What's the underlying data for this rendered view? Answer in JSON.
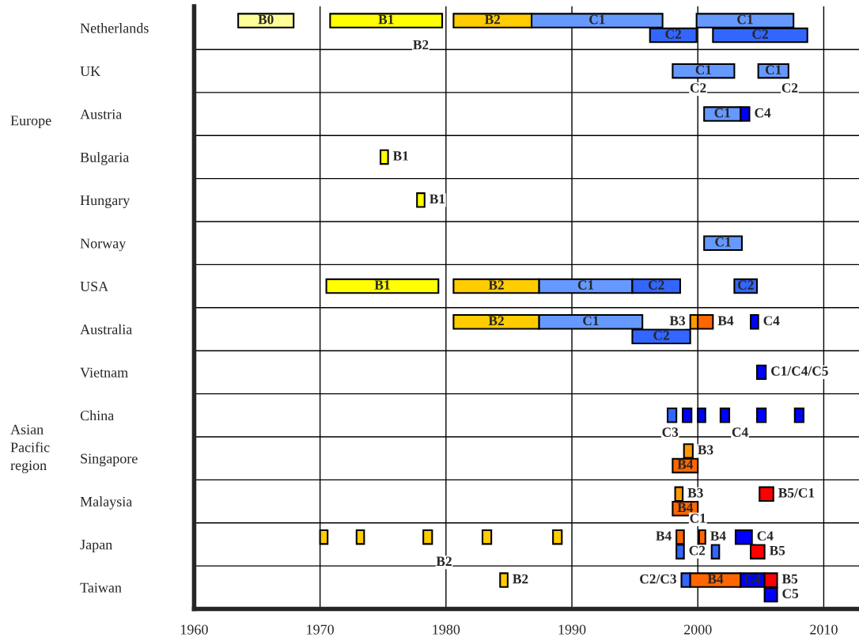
{
  "chart_data": {
    "type": "bar",
    "orientation": "horizontal",
    "categories": [
      "Netherlands",
      "UK",
      "Austria",
      "Bulgaria",
      "Hungary",
      "Norway",
      "USA",
      "Australia",
      "Vietnam",
      "China",
      "Singapore",
      "Malaysia",
      "Japan",
      "Taiwan"
    ],
    "xlim": [
      1960,
      2012.8
    ],
    "xticks": [
      1960,
      1970,
      1980,
      1990,
      2000,
      2010
    ],
    "grid": true,
    "series": [
      {
        "base": [
          1963.5,
          1998.0,
          2000.5,
          1974.8,
          1977.7,
          2000.5,
          1970.5,
          1980.6,
          2004.7,
          1997.6,
          1998.9,
          1998.2,
          1970.0,
          1984.3
        ],
        "values": [
          4.4,
          4.9,
          2.9,
          0.6,
          0.6,
          3.0,
          8.9,
          6.8,
          0.7,
          0.7,
          0.7,
          0.6,
          0.6,
          0.6
        ],
        "colors": [
          "#ffff99",
          "#6699ff",
          "#6699ff",
          "#ffff00",
          "#ffff00",
          "#6699ff",
          "#ffff00",
          "#ffcc00",
          "#0000ff",
          "#3366ff",
          "#ff9900",
          "#ff9900",
          "#ffcc00",
          "#ffcc00"
        ],
        "value_labels": [
          "B0",
          "C1",
          "C1",
          "B1",
          "B1",
          "C1",
          "B1",
          "B2",
          "C1/C4/C5",
          null,
          "B3",
          "B3",
          null,
          "B2"
        ]
      },
      {
        "base": [
          1970.8,
          2004.8,
          2003.4,
          null,
          null,
          null,
          1980.6,
          1987.4,
          null,
          1998.8,
          1998.0,
          1998.0,
          1972.9,
          1998.7
        ],
        "values": [
          8.9,
          2.4,
          0.7,
          null,
          null,
          null,
          6.8,
          8.2,
          null,
          0.7,
          2.0,
          2.0,
          0.6,
          0.7
        ],
        "colors": [
          "#ffff00",
          "#6699ff",
          "#0000ff",
          null,
          null,
          null,
          "#ffcc00",
          "#6699ff",
          null,
          "#0000ff",
          "#ff6600",
          "#ff6600",
          "#ffcc00",
          "#3366ff"
        ],
        "value_labels": [
          "B1",
          "C1",
          "C4",
          null,
          null,
          null,
          "B2",
          "C1",
          null,
          null,
          "B4",
          "B4",
          null,
          "C2/C3"
        ]
      },
      {
        "base": [
          1980.6,
          null,
          null,
          null,
          null,
          null,
          1987.4,
          1994.8,
          null,
          2000.0,
          null,
          2004.9,
          1978.2,
          1999.4
        ],
        "values": [
          6.2,
          null,
          null,
          null,
          null,
          null,
          7.4,
          4.6,
          null,
          0.6,
          null,
          1.1,
          0.7,
          4.0
        ],
        "colors": [
          "#ffcc00",
          null,
          null,
          null,
          null,
          null,
          "#6699ff",
          "#3366ff",
          null,
          "#0000ff",
          null,
          "#ff0000",
          "#ffcc00",
          "#ff6600"
        ],
        "value_labels": [
          "B2",
          null,
          null,
          null,
          null,
          null,
          "C1",
          "C2",
          null,
          null,
          null,
          "B5/C1",
          null,
          "B4"
        ]
      },
      {
        "base": [
          1986.8,
          null,
          null,
          null,
          null,
          null,
          1994.8,
          1999.4,
          null,
          2001.8,
          null,
          null,
          1982.9,
          2003.4
        ],
        "values": [
          10.4,
          null,
          null,
          null,
          null,
          null,
          3.8,
          0.6,
          null,
          0.7,
          null,
          null,
          0.7,
          1.9
        ],
        "colors": [
          "#6699ff",
          null,
          null,
          null,
          null,
          null,
          "#3366ff",
          "#ff9900",
          null,
          "#0000ff",
          null,
          null,
          "#ffcc00",
          "#0000ff"
        ],
        "value_labels": [
          "C1",
          null,
          null,
          null,
          null,
          null,
          "C2",
          "B3",
          null,
          null,
          null,
          null,
          null,
          "C4"
        ]
      },
      {
        "base": [
          1996.2,
          null,
          null,
          null,
          null,
          null,
          2002.9,
          2000.0,
          null,
          2004.7,
          null,
          null,
          1988.5,
          2005.3
        ],
        "values": [
          3.7,
          null,
          null,
          null,
          null,
          null,
          1.8,
          1.2,
          null,
          0.7,
          null,
          null,
          0.7,
          1.0
        ],
        "colors": [
          "#3366ff",
          null,
          null,
          null,
          null,
          null,
          "#3366ff",
          "#ff6600",
          null,
          "#0000ff",
          null,
          null,
          "#ffcc00",
          "#ff0000"
        ],
        "value_labels": [
          "C2",
          null,
          null,
          null,
          null,
          null,
          "C2",
          "B4",
          null,
          null,
          null,
          null,
          null,
          "B5"
        ]
      },
      {
        "base": [
          1999.9,
          null,
          null,
          null,
          null,
          null,
          null,
          2004.2,
          null,
          2007.7,
          null,
          null,
          1998.3,
          2005.3
        ],
        "values": [
          7.7,
          null,
          null,
          null,
          null,
          null,
          null,
          0.6,
          null,
          0.7,
          null,
          null,
          0.6,
          1.0
        ],
        "colors": [
          "#6699ff",
          null,
          null,
          null,
          null,
          null,
          null,
          "#0000ff",
          null,
          "#0000ff",
          null,
          null,
          "#ff6600",
          "#0000ff"
        ],
        "value_labels": [
          "C1",
          null,
          null,
          null,
          null,
          null,
          null,
          "C4",
          null,
          null,
          null,
          null,
          "B4",
          "C5"
        ]
      },
      {
        "base": [
          2001.2,
          null,
          null,
          null,
          null,
          null,
          null,
          null,
          null,
          null,
          null,
          null,
          1998.3,
          null
        ],
        "values": [
          7.5,
          null,
          null,
          null,
          null,
          null,
          null,
          null,
          null,
          null,
          null,
          null,
          0.6,
          null
        ],
        "colors": [
          "#3366ff",
          null,
          null,
          null,
          null,
          null,
          null,
          null,
          null,
          null,
          null,
          null,
          "#3366ff",
          null
        ],
        "value_labels": [
          "C2",
          null,
          null,
          null,
          null,
          null,
          null,
          null,
          null,
          null,
          null,
          null,
          "C2",
          null
        ]
      },
      {
        "base": [
          null,
          null,
          null,
          null,
          null,
          null,
          null,
          null,
          null,
          null,
          null,
          null,
          2000.1,
          null
        ],
        "values": [
          null,
          null,
          null,
          null,
          null,
          null,
          null,
          null,
          null,
          null,
          null,
          null,
          0.5,
          null
        ],
        "colors": [
          null,
          null,
          null,
          null,
          null,
          null,
          null,
          null,
          null,
          null,
          null,
          null,
          "#ff6600",
          null
        ],
        "value_labels": [
          null,
          null,
          null,
          null,
          null,
          null,
          null,
          null,
          null,
          null,
          null,
          null,
          "B4",
          null
        ]
      },
      {
        "base": [
          null,
          null,
          null,
          null,
          null,
          null,
          null,
          null,
          null,
          null,
          null,
          null,
          2001.1,
          null
        ],
        "values": [
          null,
          null,
          null,
          null,
          null,
          null,
          null,
          null,
          null,
          null,
          null,
          null,
          0.6,
          null
        ],
        "colors": [
          null,
          null,
          null,
          null,
          null,
          null,
          null,
          null,
          null,
          null,
          null,
          null,
          "#3366ff",
          null
        ]
      },
      {
        "base": [
          null,
          null,
          null,
          null,
          null,
          null,
          null,
          null,
          null,
          null,
          null,
          null,
          2003.0,
          null
        ],
        "values": [
          null,
          null,
          null,
          null,
          null,
          null,
          null,
          null,
          null,
          null,
          null,
          null,
          1.3,
          null
        ],
        "colors": [
          null,
          null,
          null,
          null,
          null,
          null,
          null,
          null,
          null,
          null,
          null,
          null,
          "#0000ff",
          null
        ],
        "value_labels": [
          null,
          null,
          null,
          null,
          null,
          null,
          null,
          null,
          null,
          null,
          null,
          null,
          "C4",
          null
        ]
      },
      {
        "base": [
          null,
          null,
          null,
          null,
          null,
          null,
          null,
          null,
          null,
          null,
          null,
          null,
          2004.2,
          null
        ],
        "values": [
          null,
          null,
          null,
          null,
          null,
          null,
          null,
          null,
          null,
          null,
          null,
          null,
          1.1,
          null
        ],
        "colors": [
          null,
          null,
          null,
          null,
          null,
          null,
          null,
          null,
          null,
          null,
          null,
          null,
          "#ff0000",
          null
        ],
        "value_labels": [
          null,
          null,
          null,
          null,
          null,
          null,
          null,
          null,
          null,
          null,
          null,
          null,
          "B5",
          null
        ]
      }
    ],
    "annotations": [
      {
        "text": "B2",
        "x": 1978.0,
        "y": "Netherlands"
      },
      "C2",
      {
        "text": "C2",
        "x": 2007.3,
        "y": "UK"
      },
      {
        "text": "C1",
        "x": 2000.0,
        "y": "Malaysia"
      },
      {
        "text": "C3",
        "x": 1997.8,
        "y": "China"
      },
      "C4",
      "B2",
      "Europe",
      "Asian\nPacific\nregion"
    ]
  }
}
